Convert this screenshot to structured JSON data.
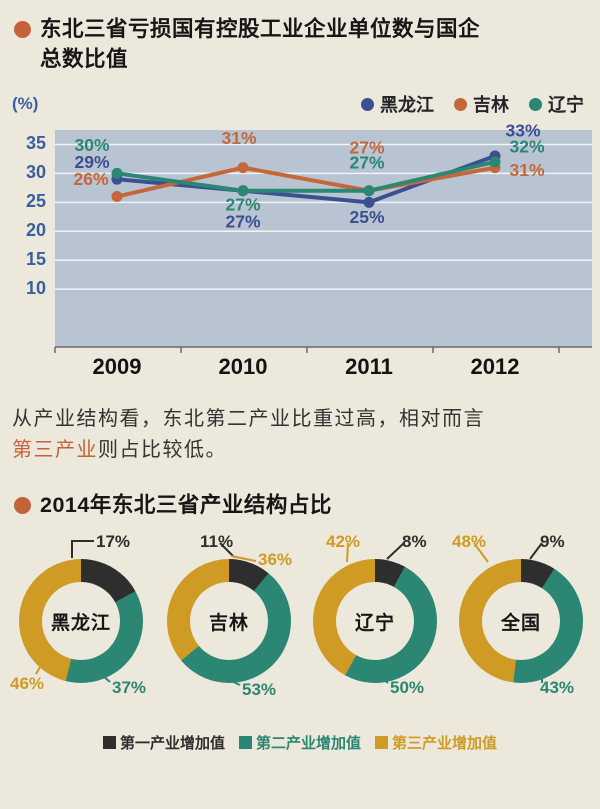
{
  "page": {
    "bg": "#ece8db",
    "accent": "#c4623a"
  },
  "header1": {
    "title_line1": "东北三省亏损国有控股工业企业单位数与国企",
    "title_line2": "总数比值"
  },
  "chart_data": [
    {
      "type": "line",
      "title": "东北三省亏损国有控股工业企业单位数与国企总数比值",
      "ylabel": "(%)",
      "categories": [
        "2009",
        "2010",
        "2011",
        "2012"
      ],
      "series": [
        {
          "name": "黑龙江",
          "color": "#3c4f90",
          "values": [
            29,
            27,
            25,
            33
          ]
        },
        {
          "name": "吉林",
          "color": "#c4673b",
          "values": [
            26,
            31,
            27,
            31
          ]
        },
        {
          "name": "辽宁",
          "color": "#2b8674",
          "values": [
            30,
            27,
            27,
            32
          ]
        }
      ],
      "yticks": [
        10,
        15,
        20,
        25,
        30,
        35
      ],
      "ylim": [
        0,
        37.5
      ],
      "grid": true,
      "plot_bg": "#b8c4d2",
      "tick_color": "#3a5fa0",
      "axis_color": "#666a70",
      "legend_position": "top-right",
      "data_label_suffix": "%"
    },
    {
      "type": "pie",
      "style": "donut",
      "title": "2014年东北三省产业结构占比",
      "segments": [
        "第一产业增加值",
        "第二产业增加值",
        "第三产业增加值"
      ],
      "segment_colors": [
        "#2e2e2e",
        "#2b8674",
        "#cf9b24"
      ],
      "donuts": [
        {
          "name": "黑龙江",
          "values": [
            17,
            37,
            46
          ]
        },
        {
          "name": "吉林",
          "values": [
            11,
            53,
            36
          ]
        },
        {
          "name": "辽宁",
          "values": [
            8,
            50,
            42
          ]
        },
        {
          "name": "全国",
          "values": [
            9,
            43,
            48
          ]
        }
      ],
      "data_label_suffix": "%"
    }
  ],
  "paragraph": {
    "part1": "从产业结构看，东北第二产业比重过高，相对而言",
    "highlight": "第三产业",
    "part2": "则占比较低。"
  },
  "header2": {
    "title": "2014年东北三省产业结构占比"
  }
}
